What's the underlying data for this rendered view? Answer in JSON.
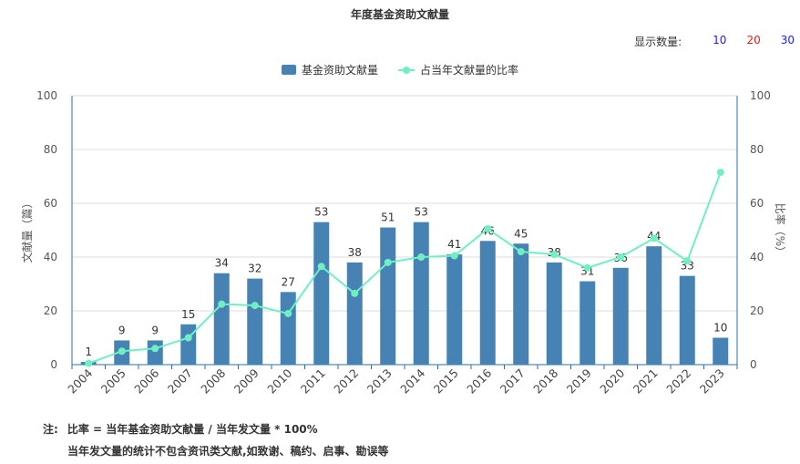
{
  "title": "年度基金资助文献量",
  "display_count": {
    "label": "显示数量:",
    "options": [
      "10",
      "20",
      "30"
    ],
    "colors": [
      "#1a1aff",
      "#e31a1c",
      "#1a1aff"
    ]
  },
  "legend": [
    {
      "name": "基金资助文献量",
      "color": "#4682b4",
      "kind": "bar"
    },
    {
      "name": "占当年文献量的比率",
      "color": "#6ff0c3",
      "kind": "line"
    }
  ],
  "chart_data": {
    "type": "bar",
    "categories": [
      "2004",
      "2005",
      "2006",
      "2007",
      "2008",
      "2009",
      "2010",
      "2011",
      "2012",
      "2013",
      "2014",
      "2015",
      "2016",
      "2017",
      "2018",
      "2019",
      "2020",
      "2021",
      "2022",
      "2023"
    ],
    "series": [
      {
        "name": "基金资助文献量",
        "type": "bar",
        "axis": "left",
        "values": [
          1,
          9,
          9,
          15,
          34,
          32,
          27,
          53,
          38,
          51,
          53,
          41,
          46,
          45,
          38,
          31,
          36,
          44,
          33,
          10
        ]
      },
      {
        "name": "占当年文献量的比率",
        "type": "line",
        "axis": "right",
        "values": [
          0.5,
          5,
          6,
          10,
          22.5,
          22,
          19,
          36.5,
          26.5,
          38,
          40,
          40.5,
          50.5,
          42,
          41,
          36,
          40,
          47,
          38.5,
          71.5
        ]
      }
    ],
    "ylabel": "文献量（篇）",
    "y2label": "比率（%）",
    "ylim": [
      0,
      100
    ],
    "y2lim": [
      0,
      100
    ],
    "yticks": [
      "0",
      "20",
      "40",
      "60",
      "80",
      "100"
    ],
    "y2ticks": [
      "0",
      "20",
      "40",
      "60",
      "80",
      "100"
    ],
    "grid": true,
    "legend_position": "top-center"
  },
  "notes": {
    "prefix": "注:",
    "line1": "比率 = 当年基金资助文献量 / 当年发文量 * 100%",
    "line2": "当年发文量的统计不包含资讯类文献,如致谢、稿约、启事、勘误等"
  }
}
